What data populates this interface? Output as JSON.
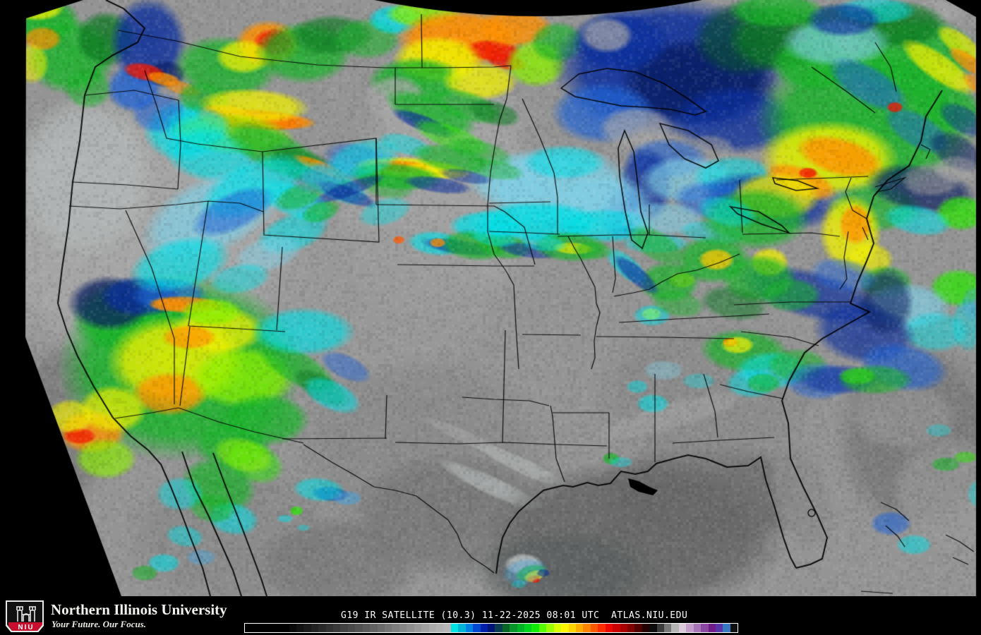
{
  "footer": {
    "logo": {
      "acronym": "NIU",
      "institution": "Northern Illinois University",
      "tagline": "Your Future. Our Focus.",
      "shield_red": "#c8102e",
      "shield_black": "#111111"
    },
    "caption": "G19 IR SATELLITE (10.3) 11-22-2025 08:01 UTC  ATLAS.NIU.EDU",
    "colorbar": {
      "border_color": "#ffffff",
      "segments": [
        "#000000",
        "#000000",
        "#000000",
        "#000000",
        "#000000",
        "#000000",
        "#0a0a0a",
        "#121212",
        "#1a1a1a",
        "#222222",
        "#2a2a2a",
        "#323232",
        "#3a3a3a",
        "#424242",
        "#4a4a4a",
        "#525252",
        "#5a5a5a",
        "#626262",
        "#6b6b6b",
        "#747474",
        "#7d7d7d",
        "#868686",
        "#8f8f8f",
        "#989898",
        "#a1a1a1",
        "#aaaaaa",
        "#b0b0b0",
        "#b6b6b6",
        "#00e4e4",
        "#00b4d8",
        "#0080e0",
        "#0048d0",
        "#0020a8",
        "#001478",
        "#0a3c50",
        "#086428",
        "#089428",
        "#00b428",
        "#00d41c",
        "#10ec08",
        "#58fc00",
        "#9cfc00",
        "#d8fc00",
        "#fcf400",
        "#fcd400",
        "#fcac00",
        "#fc8400",
        "#fc5800",
        "#fc2c00",
        "#ec0800",
        "#cc0000",
        "#a80000",
        "#800000",
        "#500000",
        "#240000",
        "#0c0c0c",
        "#3c3c3c",
        "#787878",
        "#b4b4b4",
        "#d8c8d8",
        "#c49cc8",
        "#a874b8",
        "#8c48a0",
        "#701c88",
        "#5834a8",
        "#3878c0",
        "#101010"
      ]
    }
  },
  "map": {
    "base_gray": "#949494",
    "space_color": "#000000",
    "border_color": "#000000"
  }
}
